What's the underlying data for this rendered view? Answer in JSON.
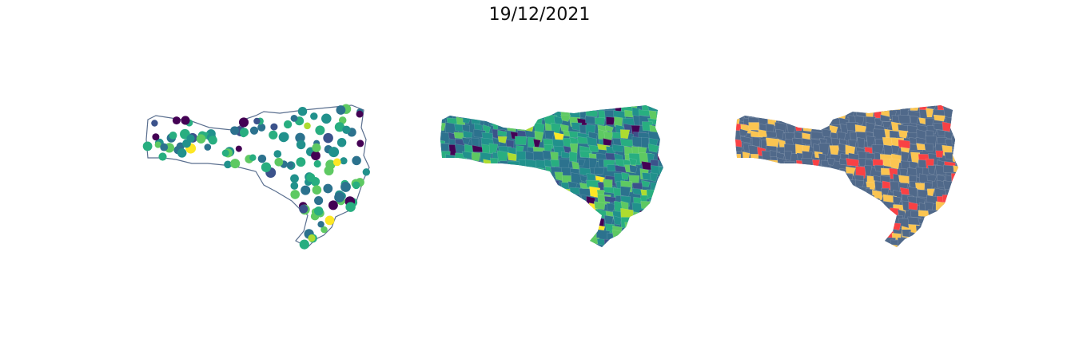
{
  "title": "19/12/2021"
}
